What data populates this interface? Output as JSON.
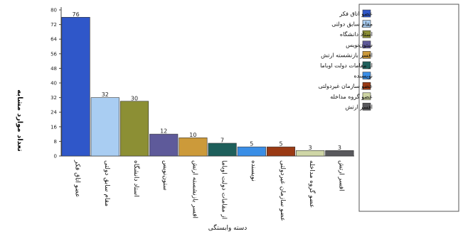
{
  "chart_data": {
    "type": "bar",
    "title": "",
    "xlabel": "دسته وابستگی",
    "ylabel": "تعداد موارد مشابه",
    "ylim": [
      0,
      80
    ],
    "yticks": [
      0,
      8,
      16,
      24,
      32,
      40,
      48,
      56,
      64,
      72,
      80
    ],
    "grid": false,
    "legend_position": "right",
    "categories": [
      "عضو اتاق فکر",
      "مقام سابق دولتی",
      "استاد دانشگاه",
      "ستون‌نویس",
      "افسر بازنشسته ارتش",
      "از مقامات دولت اوباما",
      "نویسنده",
      "عضو سازمان غیردولتی",
      "عضو گروه مداخله",
      "افسر ارتش"
    ],
    "values": [
      76,
      32,
      30,
      12,
      10,
      7,
      5,
      5,
      3,
      3
    ],
    "colors": [
      "#2f57c9",
      "#a9cdf2",
      "#8c8f34",
      "#5e5a9a",
      "#cc9a3a",
      "#1e5f5b",
      "#3a8ee6",
      "#9a3a14",
      "#cfd6a6",
      "#59595d"
    ]
  }
}
